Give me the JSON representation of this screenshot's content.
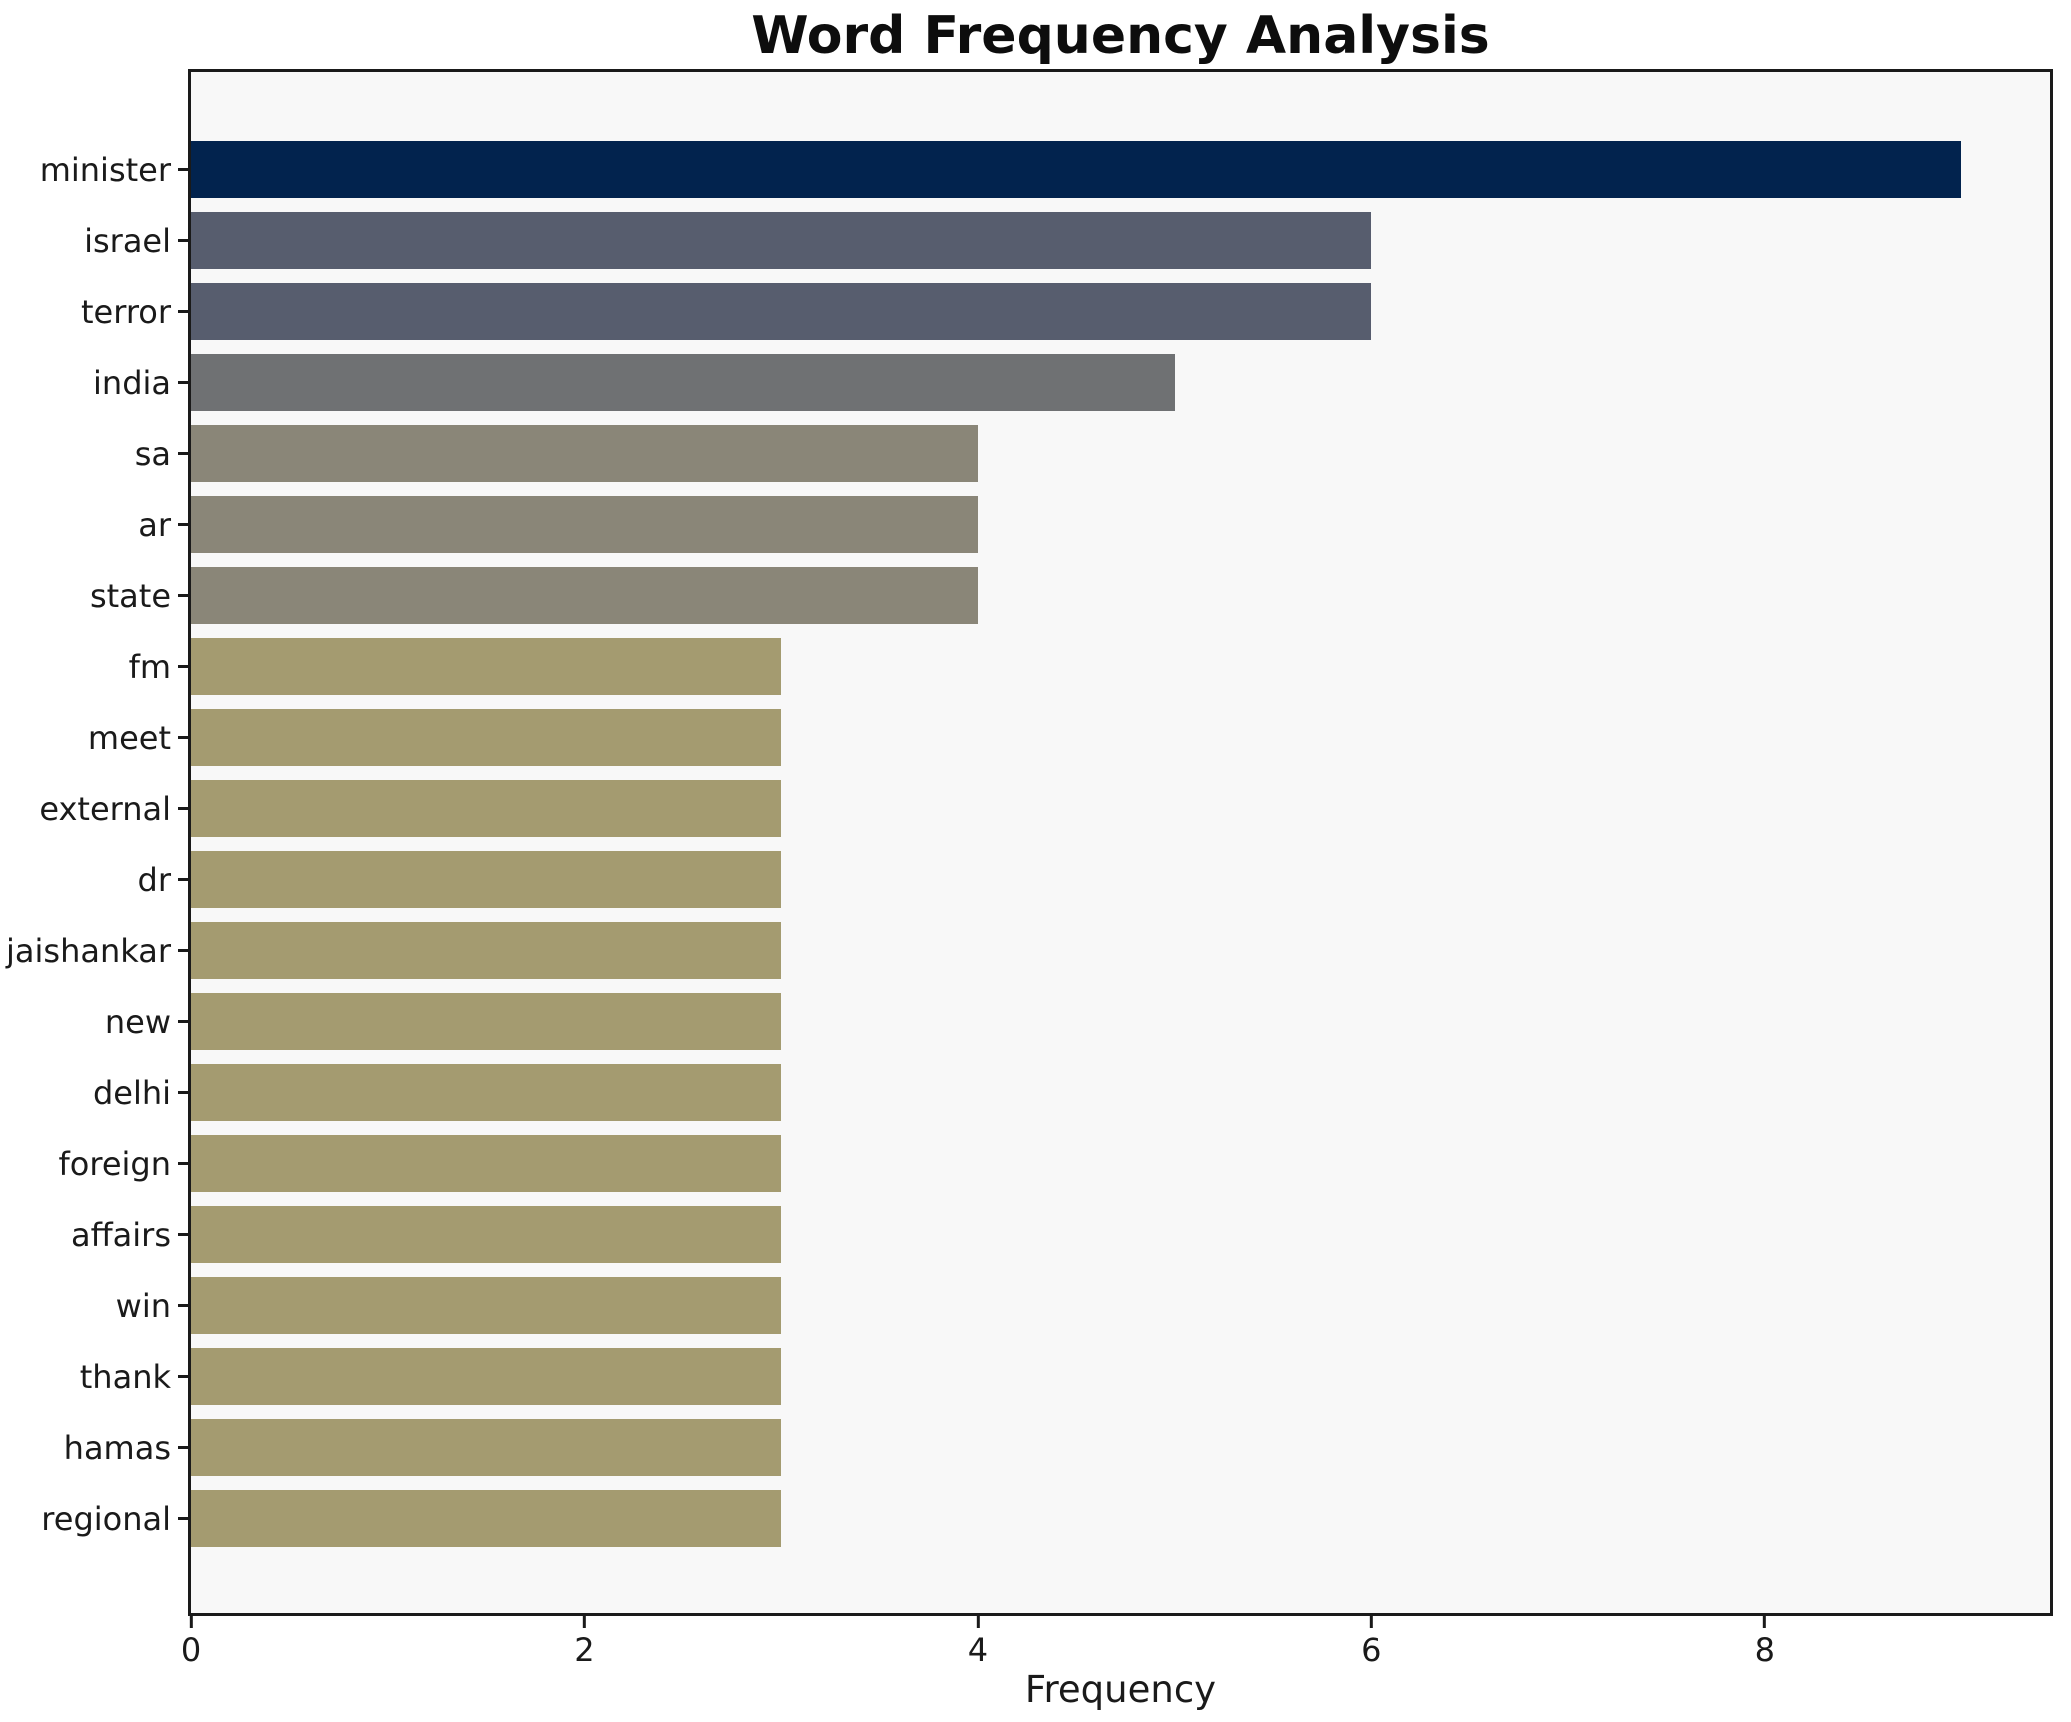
{
  "title": "Word Frequency Analysis",
  "style": {
    "figure_bg": "#ffffff",
    "plot_bg": "#f8f8f8",
    "spine_color": "#1a1a1a",
    "text_color": "#1a1a1a"
  },
  "chart_data": {
    "type": "bar",
    "orientation": "horizontal",
    "title": "Word Frequency Analysis",
    "xlabel": "Frequency",
    "ylabel": "",
    "grid": false,
    "legend": false,
    "xlim": [
      0,
      9.45
    ],
    "x_ticks": [
      0,
      2,
      4,
      6,
      8
    ],
    "categories": [
      "minister",
      "israel",
      "terror",
      "india",
      "sa",
      "ar",
      "state",
      "fm",
      "meet",
      "external",
      "dr",
      "jaishankar",
      "new",
      "delhi",
      "foreign",
      "affairs",
      "win",
      "thank",
      "hamas",
      "regional"
    ],
    "values": [
      9,
      6,
      6,
      5,
      4,
      4,
      4,
      3,
      3,
      3,
      3,
      3,
      3,
      3,
      3,
      3,
      3,
      3,
      3,
      3
    ],
    "bar_colors": [
      "#02234e",
      "#575d6e",
      "#575d6e",
      "#6f7173",
      "#8a8678",
      "#8a8678",
      "#8a8678",
      "#a49b70",
      "#a49b70",
      "#a49b70",
      "#a49b70",
      "#a49b70",
      "#a49b70",
      "#a49b70",
      "#a49b70",
      "#a49b70",
      "#a49b70",
      "#a49b70",
      "#a49b70",
      "#a49b70"
    ]
  }
}
